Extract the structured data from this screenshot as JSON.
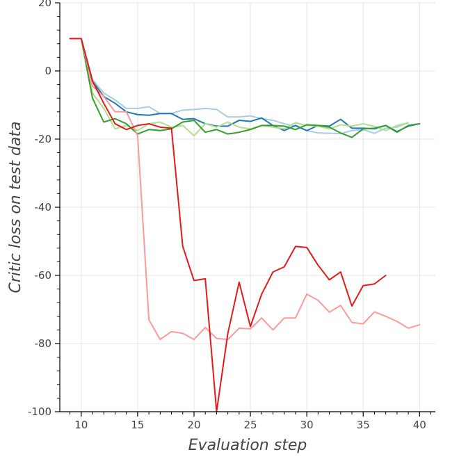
{
  "chart_data": {
    "type": "line",
    "title": "",
    "xlabel": "Evaluation step",
    "ylabel": "Critic loss on test data",
    "xlim": [
      8.1,
      41.4
    ],
    "ylim": [
      -100,
      20
    ],
    "xticks": [
      10,
      15,
      20,
      25,
      30,
      35,
      40
    ],
    "yticks": [
      -100,
      -80,
      -60,
      -40,
      -20,
      0,
      20
    ],
    "grid": true,
    "legend": "none",
    "series": [
      {
        "name": "light-blue",
        "color": "#a6cee3",
        "x": [
          9,
          10,
          11,
          12,
          13,
          14,
          15,
          16,
          17,
          18,
          19,
          20,
          21,
          22,
          23,
          24,
          25,
          26,
          27,
          28,
          29,
          30,
          31,
          32,
          33,
          34,
          35,
          36,
          37,
          38,
          39
        ],
        "y": [
          9.5,
          9.5,
          -2.5,
          -6.5,
          -8.5,
          -11,
          -11,
          -10.5,
          -12.5,
          -12.5,
          -11.5,
          -11.3,
          -11,
          -11.3,
          -13.5,
          -13.5,
          -13.2,
          -14,
          -14.5,
          -15.5,
          -16.2,
          -17.5,
          -18.2,
          -18.3,
          -18.4,
          -17.5,
          -17.2,
          -18.3,
          -16.8,
          -16.5,
          -15.2
        ]
      },
      {
        "name": "blue",
        "color": "#1f78b4",
        "x": [
          9,
          10,
          11,
          12,
          13,
          14,
          15,
          16,
          17,
          18,
          19,
          20,
          21,
          22,
          23,
          24,
          25,
          26,
          27,
          28,
          29,
          30,
          31,
          32,
          33,
          34,
          35,
          36,
          37,
          38,
          39,
          40
        ],
        "y": [
          9.5,
          9.5,
          -3,
          -7.5,
          -9.5,
          -12,
          -12.8,
          -13,
          -12.5,
          -12.5,
          -14.2,
          -14,
          -15.5,
          -16.2,
          -16.2,
          -14.5,
          -14.8,
          -13.8,
          -16,
          -17.5,
          -16,
          -17.5,
          -16,
          -16.2,
          -14.2,
          -16.8,
          -16.8,
          -17,
          -16,
          -17.8,
          -16.2,
          -15.5
        ]
      },
      {
        "name": "light-green",
        "color": "#b2df8a",
        "x": [
          9,
          10,
          11,
          12,
          13,
          14,
          15,
          16,
          17,
          18,
          19,
          20,
          21,
          22,
          23,
          24,
          25,
          26,
          27,
          28,
          29,
          30,
          31,
          32,
          33,
          34,
          35,
          36,
          37,
          38,
          39
        ],
        "y": [
          9.5,
          9.5,
          -6.5,
          -11,
          -17,
          -16,
          -17.5,
          -15.5,
          -15,
          -16.5,
          -16,
          -19,
          -15.5,
          -16.5,
          -15,
          -16.5,
          -17,
          -16,
          -16.5,
          -17,
          -15.2,
          -16,
          -16.2,
          -17,
          -15.8,
          -16.2,
          -15.5,
          -16.3,
          -17.5,
          -16,
          -15.2
        ]
      },
      {
        "name": "green",
        "color": "#33a02c",
        "x": [
          9,
          10,
          11,
          12,
          13,
          14,
          15,
          16,
          17,
          18,
          19,
          20,
          21,
          22,
          23,
          24,
          25,
          26,
          27,
          28,
          29,
          30,
          31,
          32,
          33,
          34,
          35,
          36,
          37,
          38,
          39,
          40
        ],
        "y": [
          9.5,
          9.5,
          -8,
          -15,
          -14,
          -15.5,
          -18.5,
          -17.2,
          -17.5,
          -17,
          -15,
          -14.5,
          -18,
          -17.2,
          -18.5,
          -18,
          -17.2,
          -16,
          -16,
          -16.2,
          -17.2,
          -15.8,
          -16,
          -16.5,
          -18.2,
          -19.5,
          -17,
          -16.8,
          -16,
          -18,
          -16,
          -15.5
        ]
      },
      {
        "name": "pink",
        "color": "#fb9a99",
        "x": [
          9,
          10,
          11,
          12,
          13,
          14,
          15,
          16,
          17,
          18,
          19,
          20,
          21,
          22,
          23,
          24,
          25,
          26,
          27,
          28,
          29,
          30,
          31,
          32,
          33,
          34,
          35,
          36,
          37,
          38,
          39,
          40
        ],
        "y": [
          9.5,
          9.5,
          -4.5,
          -7.5,
          -12,
          -12,
          -19,
          -73,
          -78.8,
          -76.5,
          -77,
          -78.8,
          -75.3,
          -78.5,
          -78.8,
          -75.5,
          -75.7,
          -72.5,
          -76,
          -72.5,
          -72.5,
          -65.5,
          -67.3,
          -70.8,
          -68.8,
          -73.8,
          -74.2,
          -70.7,
          -72,
          -73.5,
          -75.5,
          -74.5
        ]
      },
      {
        "name": "red",
        "color": "#e31a1c",
        "x": [
          9,
          10,
          11,
          12,
          13,
          14,
          15,
          16,
          17,
          18,
          19,
          20,
          21,
          22,
          23,
          24,
          25,
          26,
          27,
          28,
          29,
          30,
          31,
          32,
          33,
          34,
          35,
          36,
          37
        ],
        "y": [
          9.5,
          9.5,
          -3,
          -9.5,
          -15.5,
          -17.2,
          -16,
          -15.5,
          -16.5,
          -16.8,
          -51.5,
          -61.5,
          -61,
          -100,
          -77,
          -62,
          -75,
          -65.5,
          -59,
          -57.5,
          -51.5,
          -51.8,
          -57,
          -61.3,
          -59,
          -69,
          -63,
          -62.5,
          -60
        ]
      }
    ]
  }
}
